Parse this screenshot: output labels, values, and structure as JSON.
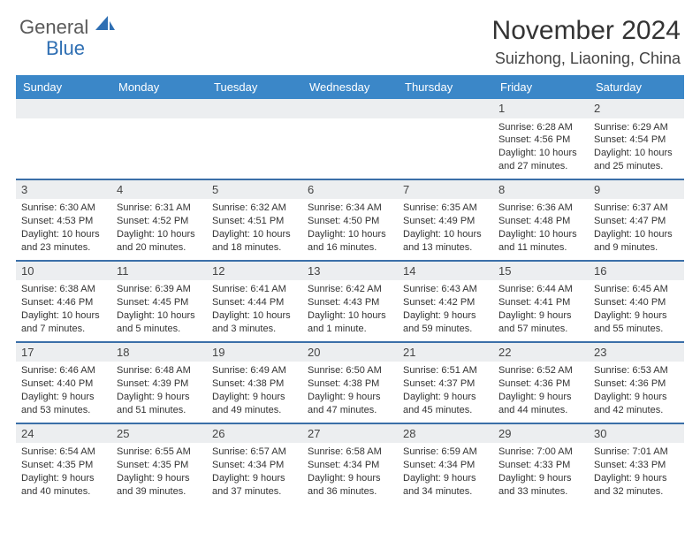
{
  "brand": {
    "general": "General",
    "blue": "Blue"
  },
  "title": "November 2024",
  "location": "Suizhong, Liaoning, China",
  "weekdays": [
    "Sunday",
    "Monday",
    "Tuesday",
    "Wednesday",
    "Thursday",
    "Friday",
    "Saturday"
  ],
  "colors": {
    "header_bar": "#3b87c8",
    "row_divider": "#3b6fa8",
    "day_number_bg": "#eceef0",
    "text": "#333333"
  },
  "weeks": [
    [
      null,
      null,
      null,
      null,
      null,
      {
        "n": "1",
        "sunrise": "Sunrise: 6:28 AM",
        "sunset": "Sunset: 4:56 PM",
        "daylight": "Daylight: 10 hours and 27 minutes."
      },
      {
        "n": "2",
        "sunrise": "Sunrise: 6:29 AM",
        "sunset": "Sunset: 4:54 PM",
        "daylight": "Daylight: 10 hours and 25 minutes."
      }
    ],
    [
      {
        "n": "3",
        "sunrise": "Sunrise: 6:30 AM",
        "sunset": "Sunset: 4:53 PM",
        "daylight": "Daylight: 10 hours and 23 minutes."
      },
      {
        "n": "4",
        "sunrise": "Sunrise: 6:31 AM",
        "sunset": "Sunset: 4:52 PM",
        "daylight": "Daylight: 10 hours and 20 minutes."
      },
      {
        "n": "5",
        "sunrise": "Sunrise: 6:32 AM",
        "sunset": "Sunset: 4:51 PM",
        "daylight": "Daylight: 10 hours and 18 minutes."
      },
      {
        "n": "6",
        "sunrise": "Sunrise: 6:34 AM",
        "sunset": "Sunset: 4:50 PM",
        "daylight": "Daylight: 10 hours and 16 minutes."
      },
      {
        "n": "7",
        "sunrise": "Sunrise: 6:35 AM",
        "sunset": "Sunset: 4:49 PM",
        "daylight": "Daylight: 10 hours and 13 minutes."
      },
      {
        "n": "8",
        "sunrise": "Sunrise: 6:36 AM",
        "sunset": "Sunset: 4:48 PM",
        "daylight": "Daylight: 10 hours and 11 minutes."
      },
      {
        "n": "9",
        "sunrise": "Sunrise: 6:37 AM",
        "sunset": "Sunset: 4:47 PM",
        "daylight": "Daylight: 10 hours and 9 minutes."
      }
    ],
    [
      {
        "n": "10",
        "sunrise": "Sunrise: 6:38 AM",
        "sunset": "Sunset: 4:46 PM",
        "daylight": "Daylight: 10 hours and 7 minutes."
      },
      {
        "n": "11",
        "sunrise": "Sunrise: 6:39 AM",
        "sunset": "Sunset: 4:45 PM",
        "daylight": "Daylight: 10 hours and 5 minutes."
      },
      {
        "n": "12",
        "sunrise": "Sunrise: 6:41 AM",
        "sunset": "Sunset: 4:44 PM",
        "daylight": "Daylight: 10 hours and 3 minutes."
      },
      {
        "n": "13",
        "sunrise": "Sunrise: 6:42 AM",
        "sunset": "Sunset: 4:43 PM",
        "daylight": "Daylight: 10 hours and 1 minute."
      },
      {
        "n": "14",
        "sunrise": "Sunrise: 6:43 AM",
        "sunset": "Sunset: 4:42 PM",
        "daylight": "Daylight: 9 hours and 59 minutes."
      },
      {
        "n": "15",
        "sunrise": "Sunrise: 6:44 AM",
        "sunset": "Sunset: 4:41 PM",
        "daylight": "Daylight: 9 hours and 57 minutes."
      },
      {
        "n": "16",
        "sunrise": "Sunrise: 6:45 AM",
        "sunset": "Sunset: 4:40 PM",
        "daylight": "Daylight: 9 hours and 55 minutes."
      }
    ],
    [
      {
        "n": "17",
        "sunrise": "Sunrise: 6:46 AM",
        "sunset": "Sunset: 4:40 PM",
        "daylight": "Daylight: 9 hours and 53 minutes."
      },
      {
        "n": "18",
        "sunrise": "Sunrise: 6:48 AM",
        "sunset": "Sunset: 4:39 PM",
        "daylight": "Daylight: 9 hours and 51 minutes."
      },
      {
        "n": "19",
        "sunrise": "Sunrise: 6:49 AM",
        "sunset": "Sunset: 4:38 PM",
        "daylight": "Daylight: 9 hours and 49 minutes."
      },
      {
        "n": "20",
        "sunrise": "Sunrise: 6:50 AM",
        "sunset": "Sunset: 4:38 PM",
        "daylight": "Daylight: 9 hours and 47 minutes."
      },
      {
        "n": "21",
        "sunrise": "Sunrise: 6:51 AM",
        "sunset": "Sunset: 4:37 PM",
        "daylight": "Daylight: 9 hours and 45 minutes."
      },
      {
        "n": "22",
        "sunrise": "Sunrise: 6:52 AM",
        "sunset": "Sunset: 4:36 PM",
        "daylight": "Daylight: 9 hours and 44 minutes."
      },
      {
        "n": "23",
        "sunrise": "Sunrise: 6:53 AM",
        "sunset": "Sunset: 4:36 PM",
        "daylight": "Daylight: 9 hours and 42 minutes."
      }
    ],
    [
      {
        "n": "24",
        "sunrise": "Sunrise: 6:54 AM",
        "sunset": "Sunset: 4:35 PM",
        "daylight": "Daylight: 9 hours and 40 minutes."
      },
      {
        "n": "25",
        "sunrise": "Sunrise: 6:55 AM",
        "sunset": "Sunset: 4:35 PM",
        "daylight": "Daylight: 9 hours and 39 minutes."
      },
      {
        "n": "26",
        "sunrise": "Sunrise: 6:57 AM",
        "sunset": "Sunset: 4:34 PM",
        "daylight": "Daylight: 9 hours and 37 minutes."
      },
      {
        "n": "27",
        "sunrise": "Sunrise: 6:58 AM",
        "sunset": "Sunset: 4:34 PM",
        "daylight": "Daylight: 9 hours and 36 minutes."
      },
      {
        "n": "28",
        "sunrise": "Sunrise: 6:59 AM",
        "sunset": "Sunset: 4:34 PM",
        "daylight": "Daylight: 9 hours and 34 minutes."
      },
      {
        "n": "29",
        "sunrise": "Sunrise: 7:00 AM",
        "sunset": "Sunset: 4:33 PM",
        "daylight": "Daylight: 9 hours and 33 minutes."
      },
      {
        "n": "30",
        "sunrise": "Sunrise: 7:01 AM",
        "sunset": "Sunset: 4:33 PM",
        "daylight": "Daylight: 9 hours and 32 minutes."
      }
    ]
  ]
}
